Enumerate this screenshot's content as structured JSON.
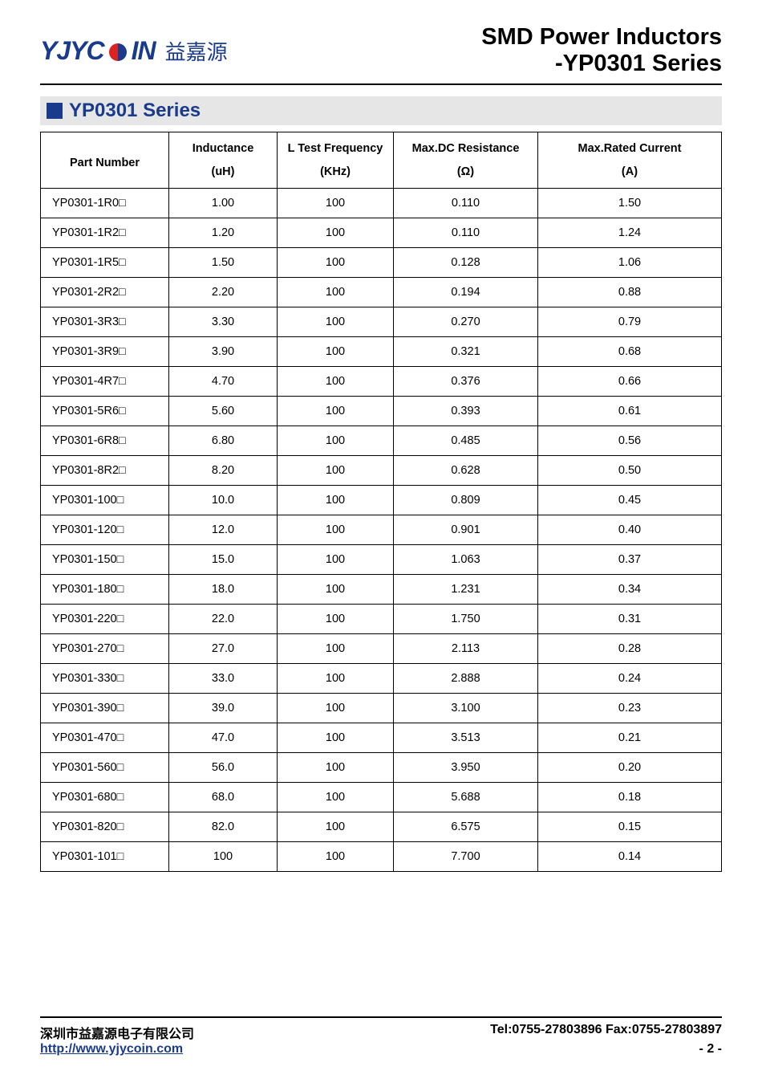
{
  "header": {
    "logo_west": "YJYC",
    "logo_east": "IN",
    "logo_cn": "益嘉源",
    "title_line1": "SMD Power Inductors",
    "title_line2": "-YP0301 Series"
  },
  "section": {
    "title": "YP0301 Series"
  },
  "table": {
    "columns": [
      {
        "top": "Part Number",
        "bot": ""
      },
      {
        "top": "Inductance",
        "bot": "(uH)"
      },
      {
        "top": "L Test Frequency",
        "bot": "(KHz)"
      },
      {
        "top": "Max.DC Resistance",
        "bot": "(Ω)"
      },
      {
        "top": "Max.Rated Current",
        "bot": "(A)"
      }
    ],
    "rows": [
      [
        "YP0301-1R0□",
        "1.00",
        "100",
        "0.110",
        "1.50"
      ],
      [
        "YP0301-1R2□",
        "1.20",
        "100",
        "0.110",
        "1.24"
      ],
      [
        "YP0301-1R5□",
        "1.50",
        "100",
        "0.128",
        "1.06"
      ],
      [
        "YP0301-2R2□",
        "2.20",
        "100",
        "0.194",
        "0.88"
      ],
      [
        "YP0301-3R3□",
        "3.30",
        "100",
        "0.270",
        "0.79"
      ],
      [
        "YP0301-3R9□",
        "3.90",
        "100",
        "0.321",
        "0.68"
      ],
      [
        "YP0301-4R7□",
        "4.70",
        "100",
        "0.376",
        "0.66"
      ],
      [
        "YP0301-5R6□",
        "5.60",
        "100",
        "0.393",
        "0.61"
      ],
      [
        "YP0301-6R8□",
        "6.80",
        "100",
        "0.485",
        "0.56"
      ],
      [
        "YP0301-8R2□",
        "8.20",
        "100",
        "0.628",
        "0.50"
      ],
      [
        "YP0301-100□",
        "10.0",
        "100",
        "0.809",
        "0.45"
      ],
      [
        "YP0301-120□",
        "12.0",
        "100",
        "0.901",
        "0.40"
      ],
      [
        "YP0301-150□",
        "15.0",
        "100",
        "1.063",
        "0.37"
      ],
      [
        "YP0301-180□",
        "18.0",
        "100",
        "1.231",
        "0.34"
      ],
      [
        "YP0301-220□",
        "22.0",
        "100",
        "1.750",
        "0.31"
      ],
      [
        "YP0301-270□",
        "27.0",
        "100",
        "2.113",
        "0.28"
      ],
      [
        "YP0301-330□",
        "33.0",
        "100",
        "2.888",
        "0.24"
      ],
      [
        "YP0301-390□",
        "39.0",
        "100",
        "3.100",
        "0.23"
      ],
      [
        "YP0301-470□",
        "47.0",
        "100",
        "3.513",
        "0.21"
      ],
      [
        "YP0301-560□",
        "56.0",
        "100",
        "3.950",
        "0.20"
      ],
      [
        "YP0301-680□",
        "68.0",
        "100",
        "5.688",
        "0.18"
      ],
      [
        "YP0301-820□",
        "82.0",
        "100",
        "6.575",
        "0.15"
      ],
      [
        "YP0301-101□",
        "100",
        "100",
        "7.700",
        "0.14"
      ]
    ]
  },
  "footer": {
    "company": "深圳市益嘉源电子有限公司",
    "contact": "Tel:0755-27803896   Fax:0755-27803897",
    "url": "http://www.yjycoin.com",
    "page": "- 2 -"
  }
}
